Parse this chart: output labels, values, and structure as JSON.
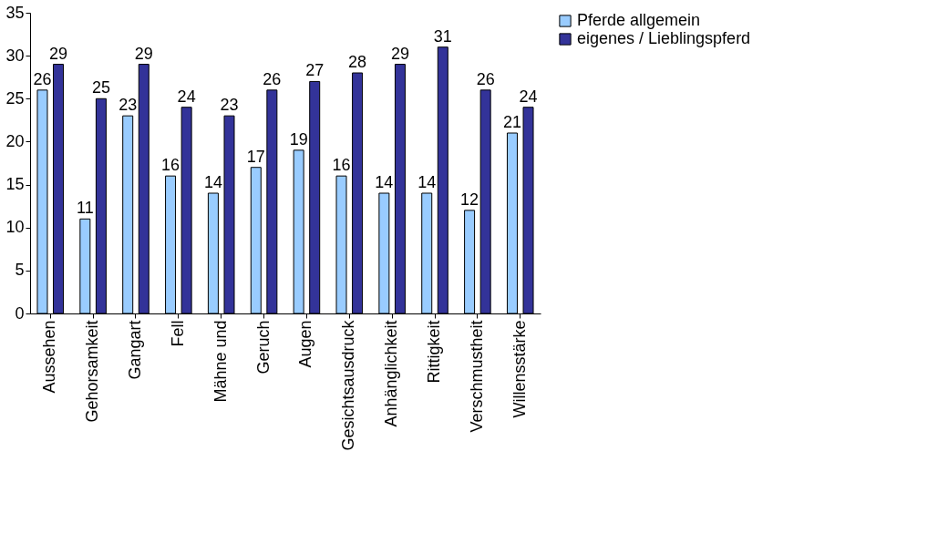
{
  "chart_data": {
    "type": "bar",
    "categories": [
      "Aussehen",
      "Gehorsamkeit",
      "Gangart",
      "Fell",
      "Mähne und",
      "Geruch",
      "Augen",
      "Gesichtsausdruck",
      "Anhänglichkeit",
      "Rittigkeit",
      "Verschmustheit",
      "Willensstärke"
    ],
    "series": [
      {
        "name": "Pferde allgemein",
        "color": "#99ccff",
        "values": [
          26,
          11,
          23,
          16,
          14,
          17,
          19,
          16,
          14,
          14,
          12,
          21
        ]
      },
      {
        "name": "eigenes / Lieblingspferd",
        "color": "#333399",
        "values": [
          29,
          25,
          29,
          24,
          23,
          26,
          27,
          28,
          29,
          31,
          26,
          24
        ]
      }
    ],
    "ylim": [
      0,
      35
    ],
    "yticks": [
      0,
      5,
      10,
      15,
      20,
      25,
      30,
      35
    ],
    "data_labels": true,
    "grid": false,
    "legend": "right"
  }
}
